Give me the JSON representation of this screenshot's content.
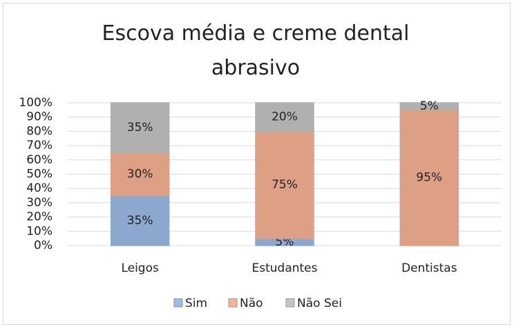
{
  "chart_data": {
    "type": "stacked_bar",
    "title": "Escova média e creme dental abrasivo",
    "categories": [
      "Leigos",
      "Estudantes",
      "Dentistas"
    ],
    "series": [
      {
        "name": "Sim",
        "color": "#9dbbe6",
        "values": [
          35,
          5,
          0
        ],
        "value_labels": [
          "35%",
          "5%",
          null
        ]
      },
      {
        "name": "Não",
        "color": "#f6b294",
        "values": [
          30,
          75,
          95
        ],
        "value_labels": [
          "30%",
          "75%",
          "95%"
        ]
      },
      {
        "name": "Não Sei",
        "color": "#c4c4c4",
        "values": [
          35,
          20,
          5
        ],
        "value_labels": [
          "35%",
          "20%",
          "5%"
        ]
      }
    ],
    "ylim": [
      0,
      100
    ],
    "yticks": [
      {
        "value": 0,
        "label": "0%"
      },
      {
        "value": 10,
        "label": "10%"
      },
      {
        "value": 20,
        "label": "20%"
      },
      {
        "value": 30,
        "label": "30%"
      },
      {
        "value": 40,
        "label": "40%"
      },
      {
        "value": 50,
        "label": "50%"
      },
      {
        "value": 60,
        "label": "60%"
      },
      {
        "value": 70,
        "label": "70%"
      },
      {
        "value": 80,
        "label": "80%"
      },
      {
        "value": 90,
        "label": "90%"
      },
      {
        "value": 100,
        "label": "100%"
      }
    ],
    "grid": true,
    "legend": "bottom"
  }
}
